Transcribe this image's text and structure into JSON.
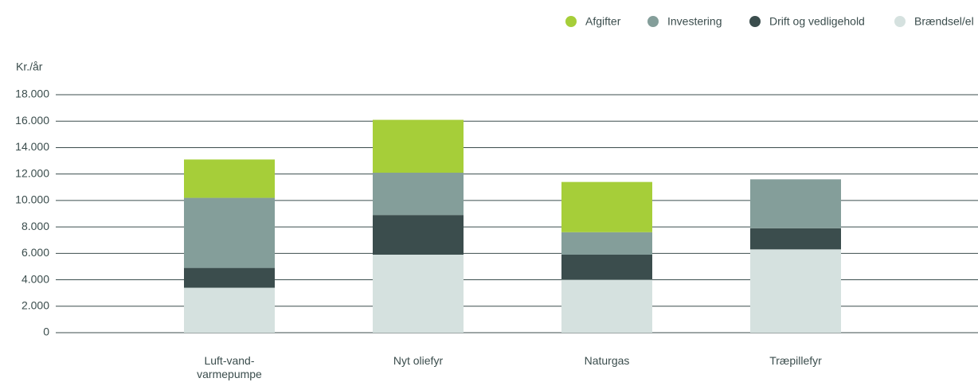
{
  "chart_data": {
    "type": "stacked_bar",
    "y_label": "Kr./år",
    "categories": [
      "Luft-vand-varmepumpe",
      "Nyt oliefyr",
      "Naturgas",
      "Træpillefyr"
    ],
    "series": [
      {
        "name": "Afgifter",
        "color": "#a6ce39",
        "values": [
          2900,
          4000,
          3800,
          0
        ]
      },
      {
        "name": "Investering",
        "color": "#849e9a",
        "values": [
          5300,
          3200,
          1700,
          3700
        ]
      },
      {
        "name": "Drift og vedligehold",
        "color": "#3b4d4d",
        "values": [
          1500,
          3000,
          1900,
          1600
        ]
      },
      {
        "name": "Brændsel/el",
        "color": "#d5e1df",
        "values": [
          3400,
          5900,
          4000,
          6300
        ]
      }
    ],
    "ylim": [
      0,
      18000
    ],
    "yticks": [
      0,
      {
        "value": 2000,
        "label": "2.000"
      },
      {
        "value": 4000,
        "label": "4.000"
      },
      {
        "value": 6000,
        "label": "6.000"
      },
      {
        "value": 8000,
        "label": "8.000"
      },
      {
        "value": 10000,
        "label": "10.000"
      },
      {
        "value": 12000,
        "label": "12.000"
      },
      {
        "value": 14000,
        "label": "14.000"
      },
      {
        "value": 16000,
        "label": "16.000"
      },
      {
        "value": 18000,
        "label": "18.000"
      }
    ],
    "grid": true,
    "legend": "top-right"
  }
}
